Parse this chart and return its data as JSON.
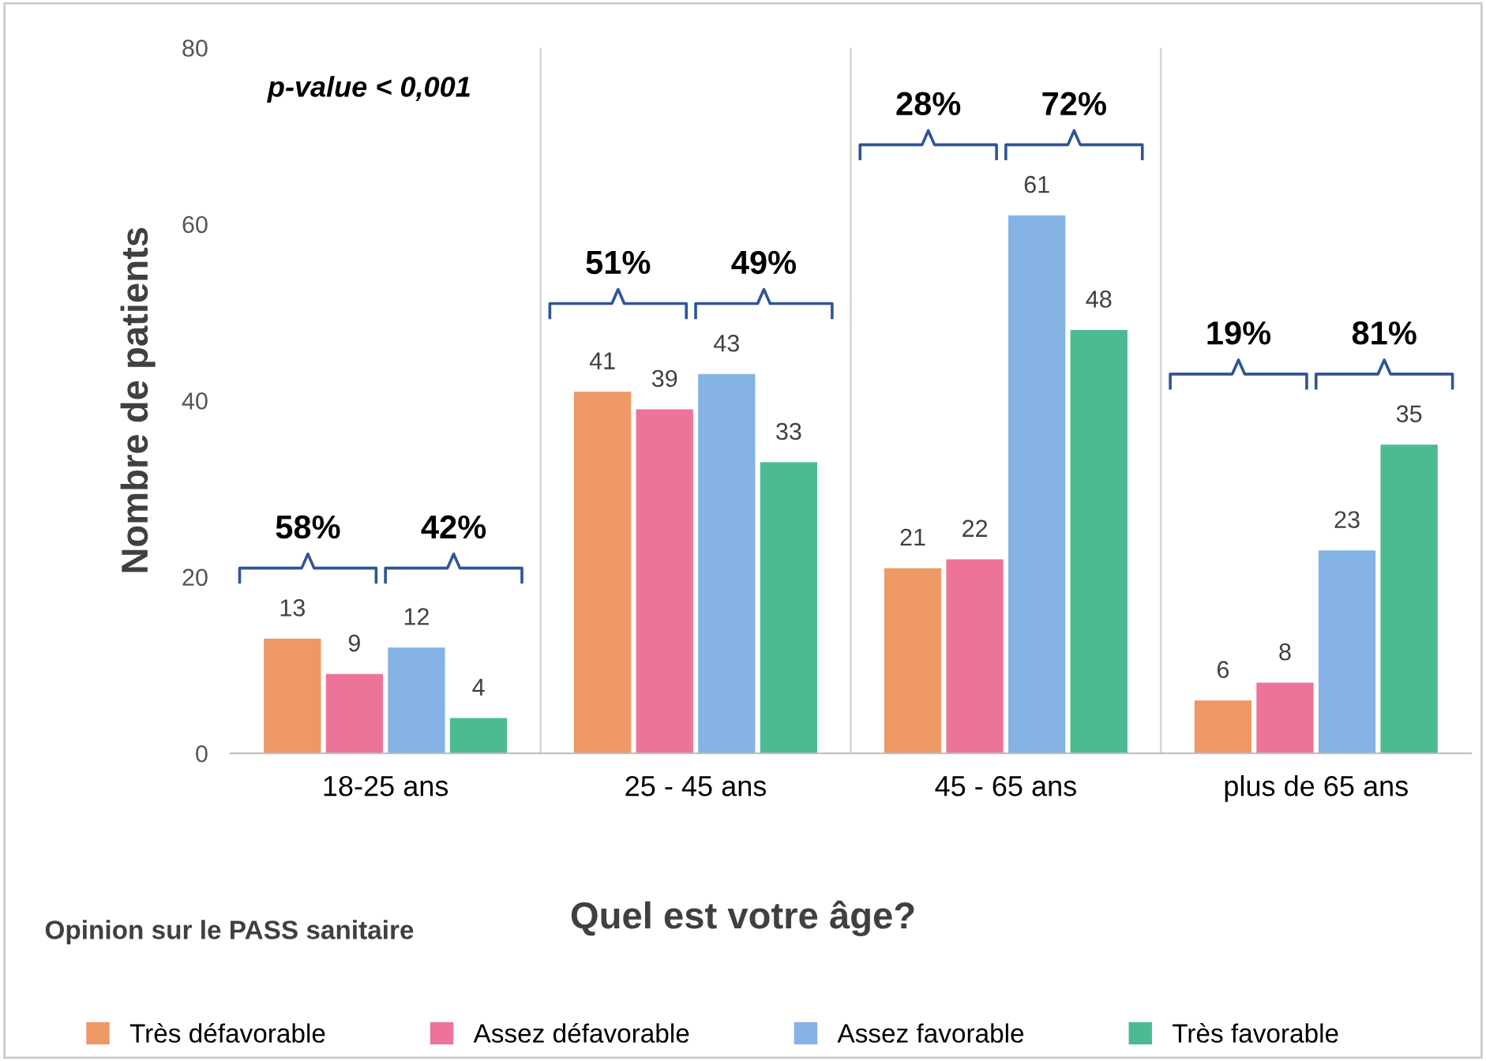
{
  "chart_data": {
    "type": "bar",
    "xlabel": "Quel est votre âge?",
    "ylabel": "Nombre de patients",
    "legend_title": "Opinion sur le PASS sanitaire",
    "categories": [
      "18-25 ans",
      "25 - 45 ans",
      "45 - 65 ans",
      "plus de 65 ans"
    ],
    "series": [
      {
        "name": "Très défavorable",
        "color": "#ee9866",
        "values": [
          13,
          41,
          21,
          6
        ]
      },
      {
        "name": "Assez défavorable",
        "color": "#ee7399",
        "values": [
          9,
          39,
          22,
          8
        ]
      },
      {
        "name": "Assez favorable",
        "color": "#85b3e3",
        "values": [
          12,
          43,
          61,
          23
        ]
      },
      {
        "name": "Très favorable",
        "color": "#4dbb91",
        "values": [
          4,
          33,
          48,
          35
        ]
      }
    ],
    "ylim": [
      0,
      80
    ],
    "yticks": [
      0,
      20,
      40,
      60,
      80
    ],
    "data_labels": true,
    "grid": "x",
    "legend": "bottom",
    "annotations": [
      "p-value < 0,001",
      "58%",
      "42%",
      "51%",
      "49%",
      "28%",
      "72%",
      "19%",
      "81%"
    ]
  }
}
